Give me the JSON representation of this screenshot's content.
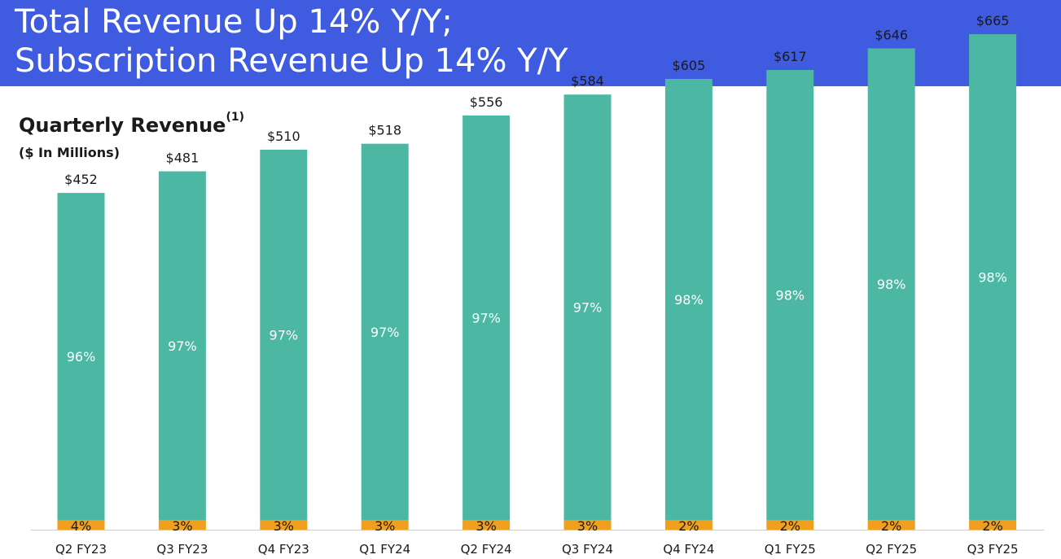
{
  "slide": {
    "title_line1": "Total Revenue Up 14% Y/Y;",
    "title_line2": "Subscription Revenue Up 14% Y/Y"
  },
  "colors": {
    "banner": "#3f5be0",
    "subscription": "#4cb8a3",
    "other": "#f0a01e",
    "axis": "#cccccc",
    "text": "#1a1a1a"
  },
  "chart_data": {
    "type": "bar",
    "stacked": true,
    "title": "Quarterly Revenue",
    "title_footnote": "(1)",
    "subtitle": "($ In Millions)",
    "categories": [
      "Q2 FY23",
      "Q3 FY23",
      "Q4 FY23",
      "Q1 FY24",
      "Q2 FY24",
      "Q3 FY24",
      "Q4 FY24",
      "Q1 FY25",
      "Q2 FY25",
      "Q3 FY25"
    ],
    "totals": [
      452,
      481,
      510,
      518,
      556,
      584,
      605,
      617,
      646,
      665
    ],
    "total_labels": [
      "$452",
      "$481",
      "$510",
      "$518",
      "$556",
      "$584",
      "$605",
      "$617",
      "$646",
      "$665"
    ],
    "series": [
      {
        "key": "subscription",
        "percent": [
          96,
          97,
          97,
          97,
          97,
          97,
          98,
          98,
          98,
          98
        ],
        "labels": [
          "96%",
          "97%",
          "97%",
          "97%",
          "97%",
          "97%",
          "98%",
          "98%",
          "98%",
          "98%"
        ]
      },
      {
        "key": "other",
        "percent": [
          4,
          3,
          3,
          3,
          3,
          3,
          2,
          2,
          2,
          2
        ],
        "labels": [
          "4%",
          "3%",
          "3%",
          "3%",
          "3%",
          "3%",
          "2%",
          "2%",
          "2%",
          "2%"
        ]
      }
    ],
    "ylim": [
      0,
      700
    ],
    "grid": false,
    "legend": "none"
  }
}
